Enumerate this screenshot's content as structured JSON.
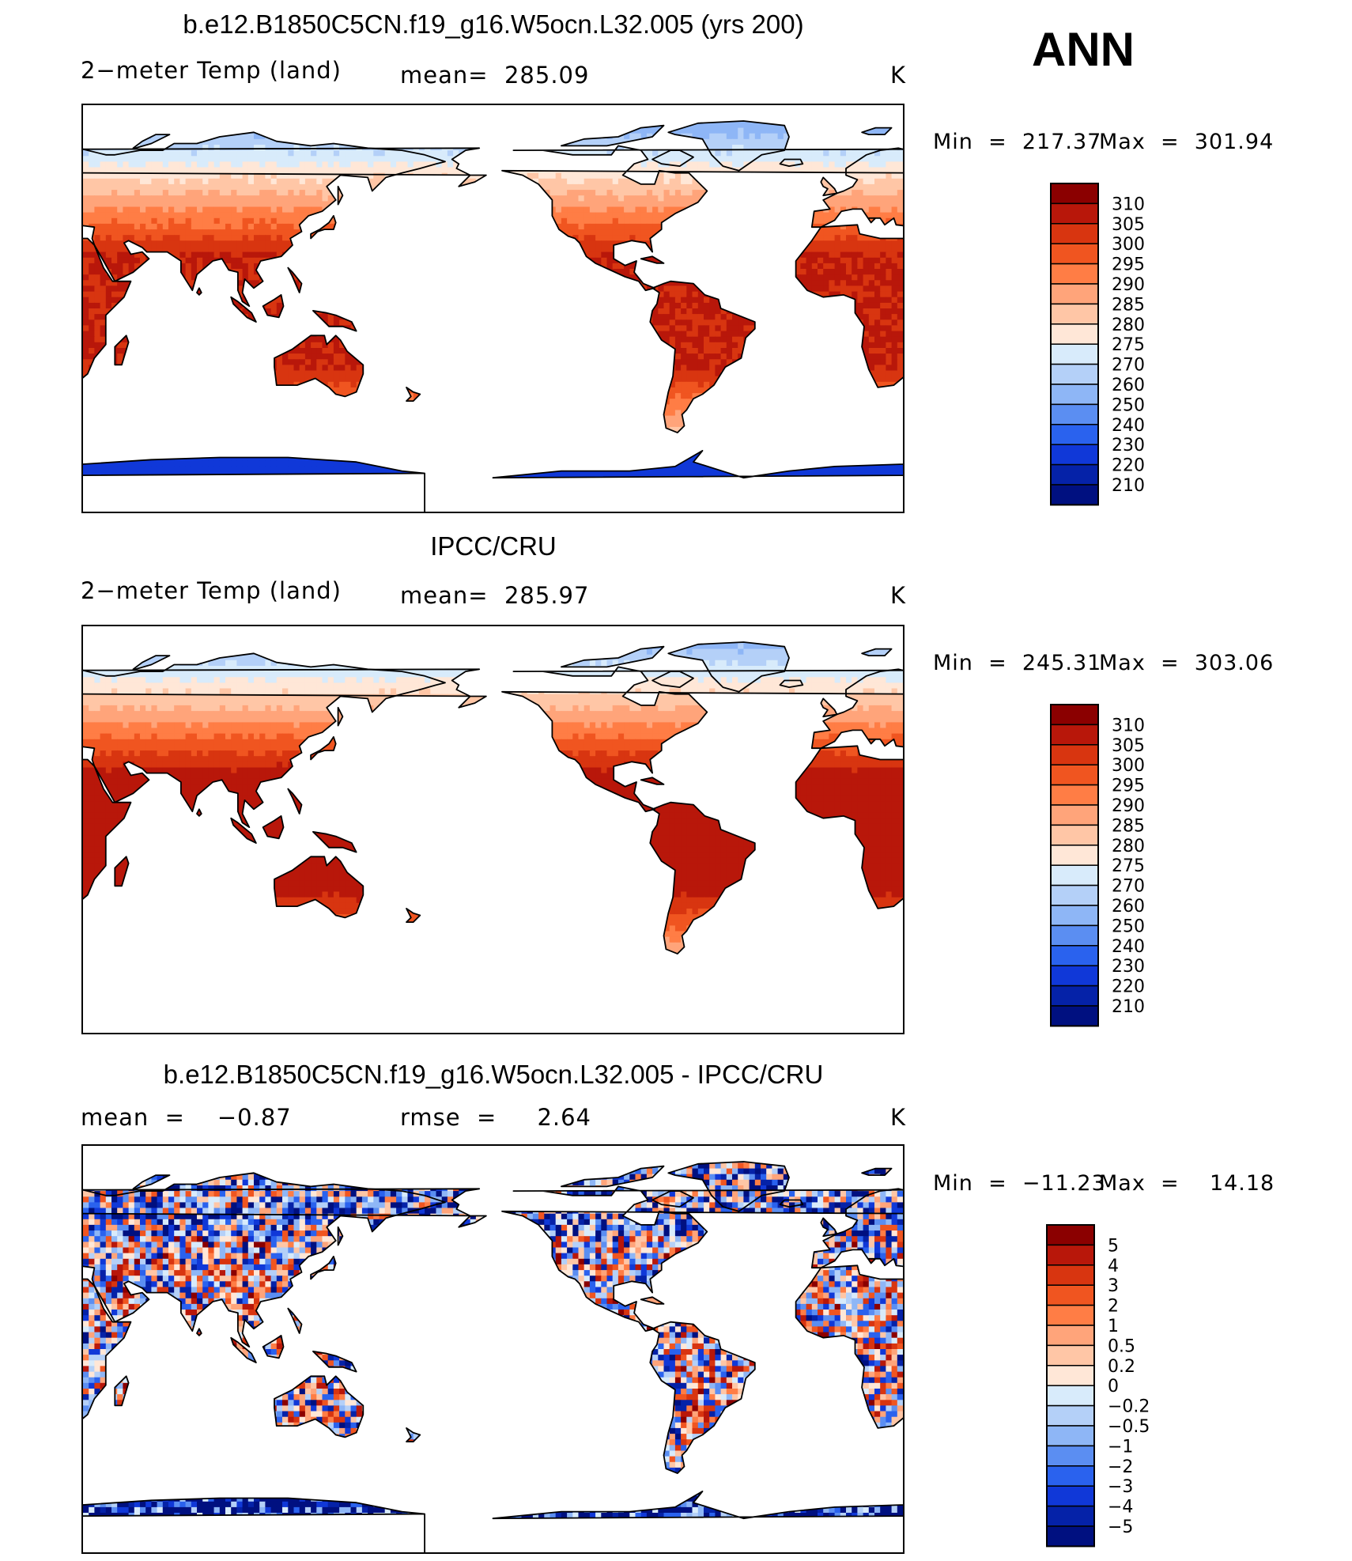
{
  "season": "ANN",
  "unit": "K",
  "panels": [
    {
      "title": "b.e12.B1850C5CN.f19_g16.W5ocn.L32.005 (yrs 200)",
      "left_label": "2−meter Temp (land)",
      "mid_label": "mean=  285.09",
      "unit": "K",
      "min_label": "Min  =  217.37",
      "max_label": "Max  =  301.94",
      "field": "model"
    },
    {
      "title": "IPCC/CRU",
      "left_label": "2−meter Temp (land)",
      "mid_label": "mean=  285.97",
      "unit": "K",
      "min_label": "Min  =  245.31",
      "max_label": "Max  =  303.06",
      "field": "obs"
    },
    {
      "title": "b.e12.B1850C5CN.f19_g16.W5ocn.L32.005 - IPCC/CRU",
      "left_label": "mean  =    −0.87",
      "mid_label": "rmse  =     2.64",
      "unit": "K",
      "min_label": "Min  =  −11.23",
      "max_label": "Max  =    14.18",
      "field": "diff"
    }
  ],
  "colorbars": {
    "temperature": {
      "labels": [
        "310",
        "305",
        "300",
        "295",
        "290",
        "285",
        "280",
        "275",
        "270",
        "260",
        "250",
        "240",
        "230",
        "220",
        "210"
      ],
      "colors": [
        "#8b0000",
        "#b8170a",
        "#d83510",
        "#f05520",
        "#ff7d45",
        "#ffa47a",
        "#ffc6a6",
        "#ffe7d7",
        "#d8ebfb",
        "#b4d0f8",
        "#8eb6f6",
        "#5b8ef2",
        "#2a62ee",
        "#1038d8",
        "#0522a8",
        "#001080"
      ]
    },
    "difference": {
      "labels": [
        "5",
        "4",
        "3",
        "2",
        "1",
        "0.5",
        "0.2",
        "0",
        "−0.2",
        "−0.5",
        "−1",
        "−2",
        "−3",
        "−4",
        "−5"
      ],
      "colors": [
        "#8b0000",
        "#b8170a",
        "#d83510",
        "#f05520",
        "#ff7d45",
        "#ffa47a",
        "#ffc6a6",
        "#ffe7d7",
        "#d8ebfb",
        "#b4d0f8",
        "#8eb6f6",
        "#5b8ef2",
        "#2a62ee",
        "#1038d8",
        "#0522a8",
        "#001080"
      ]
    }
  }
}
